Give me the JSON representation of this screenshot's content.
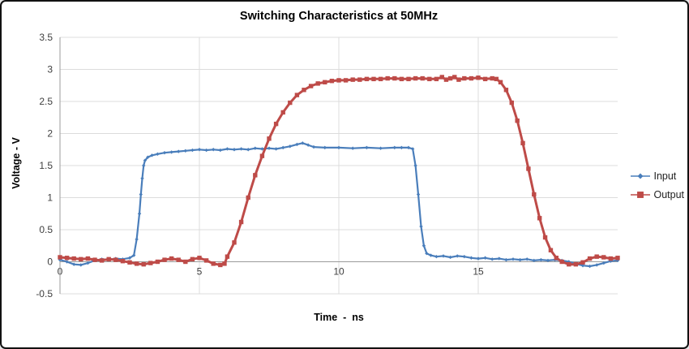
{
  "chart_data": {
    "type": "line",
    "title": "Switching Characteristics at 50MHz",
    "xlabel": "Time  -  ns",
    "ylabel": "Voltage - V",
    "xlim": [
      0,
      20
    ],
    "ylim": [
      -0.5,
      3.5
    ],
    "xticks": [
      0,
      5,
      10,
      15
    ],
    "yticks": [
      -0.5,
      0,
      0.5,
      1,
      1.5,
      2,
      2.5,
      3,
      3.5
    ],
    "grid": "major-horizontal-and-vertical",
    "legend_position": "right",
    "series": [
      {
        "name": "Input",
        "color": "#4a7ebb",
        "marker": "diamond",
        "line_width": 2.2,
        "marker_size": 4.4,
        "points": [
          [
            0,
            0.03
          ],
          [
            0.25,
            0.0
          ],
          [
            0.5,
            -0.04
          ],
          [
            0.75,
            -0.05
          ],
          [
            1,
            -0.02
          ],
          [
            1.25,
            0.02
          ],
          [
            1.5,
            0.04
          ],
          [
            1.75,
            0.03
          ],
          [
            2,
            0.05
          ],
          [
            2.25,
            0.04
          ],
          [
            2.5,
            0.06
          ],
          [
            2.65,
            0.1
          ],
          [
            2.75,
            0.35
          ],
          [
            2.85,
            0.75
          ],
          [
            2.9,
            1.05
          ],
          [
            2.95,
            1.3
          ],
          [
            3,
            1.5
          ],
          [
            3.05,
            1.58
          ],
          [
            3.15,
            1.63
          ],
          [
            3.3,
            1.66
          ],
          [
            3.5,
            1.68
          ],
          [
            3.75,
            1.7
          ],
          [
            4,
            1.71
          ],
          [
            4.25,
            1.72
          ],
          [
            4.5,
            1.73
          ],
          [
            4.75,
            1.74
          ],
          [
            5,
            1.75
          ],
          [
            5.25,
            1.74
          ],
          [
            5.5,
            1.75
          ],
          [
            5.75,
            1.74
          ],
          [
            6,
            1.76
          ],
          [
            6.25,
            1.75
          ],
          [
            6.5,
            1.76
          ],
          [
            6.75,
            1.75
          ],
          [
            7,
            1.77
          ],
          [
            7.25,
            1.76
          ],
          [
            7.5,
            1.77
          ],
          [
            7.75,
            1.76
          ],
          [
            8,
            1.78
          ],
          [
            8.25,
            1.8
          ],
          [
            8.5,
            1.83
          ],
          [
            8.7,
            1.85
          ],
          [
            8.9,
            1.82
          ],
          [
            9.1,
            1.79
          ],
          [
            9.5,
            1.78
          ],
          [
            10,
            1.78
          ],
          [
            10.5,
            1.77
          ],
          [
            11,
            1.78
          ],
          [
            11.5,
            1.77
          ],
          [
            12,
            1.78
          ],
          [
            12.25,
            1.78
          ],
          [
            12.5,
            1.78
          ],
          [
            12.65,
            1.76
          ],
          [
            12.75,
            1.5
          ],
          [
            12.85,
            1.05
          ],
          [
            12.95,
            0.55
          ],
          [
            13.05,
            0.25
          ],
          [
            13.15,
            0.13
          ],
          [
            13.3,
            0.1
          ],
          [
            13.5,
            0.08
          ],
          [
            13.75,
            0.09
          ],
          [
            14,
            0.07
          ],
          [
            14.25,
            0.09
          ],
          [
            14.5,
            0.08
          ],
          [
            14.75,
            0.06
          ],
          [
            15,
            0.05
          ],
          [
            15.25,
            0.06
          ],
          [
            15.5,
            0.04
          ],
          [
            15.75,
            0.05
          ],
          [
            16,
            0.03
          ],
          [
            16.25,
            0.04
          ],
          [
            16.5,
            0.03
          ],
          [
            16.75,
            0.04
          ],
          [
            17,
            0.02
          ],
          [
            17.25,
            0.03
          ],
          [
            17.5,
            0.02
          ],
          [
            17.75,
            0.03
          ],
          [
            18,
            0.02
          ],
          [
            18.25,
            0.0
          ],
          [
            18.5,
            -0.03
          ],
          [
            18.75,
            -0.06
          ],
          [
            19,
            -0.07
          ],
          [
            19.25,
            -0.05
          ],
          [
            19.5,
            -0.02
          ],
          [
            19.75,
            0.01
          ],
          [
            20,
            0.02
          ]
        ]
      },
      {
        "name": "Output",
        "color": "#be4b48",
        "marker": "square",
        "line_width": 3,
        "marker_size": 5.4,
        "points": [
          [
            0,
            0.07
          ],
          [
            0.25,
            0.06
          ],
          [
            0.5,
            0.05
          ],
          [
            0.75,
            0.04
          ],
          [
            1,
            0.05
          ],
          [
            1.25,
            0.03
          ],
          [
            1.5,
            0.02
          ],
          [
            1.75,
            0.04
          ],
          [
            2,
            0.03
          ],
          [
            2.25,
            0.01
          ],
          [
            2.5,
            -0.01
          ],
          [
            2.75,
            -0.03
          ],
          [
            3,
            -0.04
          ],
          [
            3.25,
            -0.02
          ],
          [
            3.5,
            0.0
          ],
          [
            3.75,
            0.03
          ],
          [
            4,
            0.05
          ],
          [
            4.25,
            0.03
          ],
          [
            4.5,
            0.0
          ],
          [
            4.75,
            0.04
          ],
          [
            5,
            0.06
          ],
          [
            5.25,
            0.02
          ],
          [
            5.5,
            -0.03
          ],
          [
            5.75,
            -0.05
          ],
          [
            5.9,
            -0.03
          ],
          [
            6,
            0.08
          ],
          [
            6.25,
            0.3
          ],
          [
            6.5,
            0.62
          ],
          [
            6.75,
            1.0
          ],
          [
            7,
            1.35
          ],
          [
            7.25,
            1.65
          ],
          [
            7.5,
            1.92
          ],
          [
            7.75,
            2.15
          ],
          [
            8,
            2.33
          ],
          [
            8.25,
            2.48
          ],
          [
            8.5,
            2.6
          ],
          [
            8.75,
            2.68
          ],
          [
            9,
            2.74
          ],
          [
            9.25,
            2.78
          ],
          [
            9.5,
            2.8
          ],
          [
            9.75,
            2.82
          ],
          [
            10,
            2.83
          ],
          [
            10.25,
            2.83
          ],
          [
            10.5,
            2.84
          ],
          [
            10.75,
            2.84
          ],
          [
            11,
            2.85
          ],
          [
            11.25,
            2.85
          ],
          [
            11.5,
            2.85
          ],
          [
            11.75,
            2.86
          ],
          [
            12,
            2.86
          ],
          [
            12.25,
            2.85
          ],
          [
            12.5,
            2.85
          ],
          [
            12.75,
            2.86
          ],
          [
            13,
            2.86
          ],
          [
            13.25,
            2.85
          ],
          [
            13.5,
            2.85
          ],
          [
            13.7,
            2.88
          ],
          [
            13.85,
            2.84
          ],
          [
            14,
            2.86
          ],
          [
            14.15,
            2.88
          ],
          [
            14.3,
            2.84
          ],
          [
            14.5,
            2.86
          ],
          [
            14.75,
            2.86
          ],
          [
            15,
            2.87
          ],
          [
            15.25,
            2.85
          ],
          [
            15.5,
            2.86
          ],
          [
            15.65,
            2.85
          ],
          [
            15.8,
            2.8
          ],
          [
            16,
            2.68
          ],
          [
            16.2,
            2.48
          ],
          [
            16.4,
            2.2
          ],
          [
            16.6,
            1.85
          ],
          [
            16.8,
            1.45
          ],
          [
            17,
            1.05
          ],
          [
            17.2,
            0.68
          ],
          [
            17.4,
            0.38
          ],
          [
            17.6,
            0.18
          ],
          [
            17.8,
            0.06
          ],
          [
            18,
            0.0
          ],
          [
            18.25,
            -0.04
          ],
          [
            18.5,
            -0.04
          ],
          [
            18.75,
            -0.01
          ],
          [
            19,
            0.05
          ],
          [
            19.25,
            0.08
          ],
          [
            19.5,
            0.07
          ],
          [
            19.75,
            0.05
          ],
          [
            20,
            0.06
          ]
        ]
      }
    ]
  }
}
